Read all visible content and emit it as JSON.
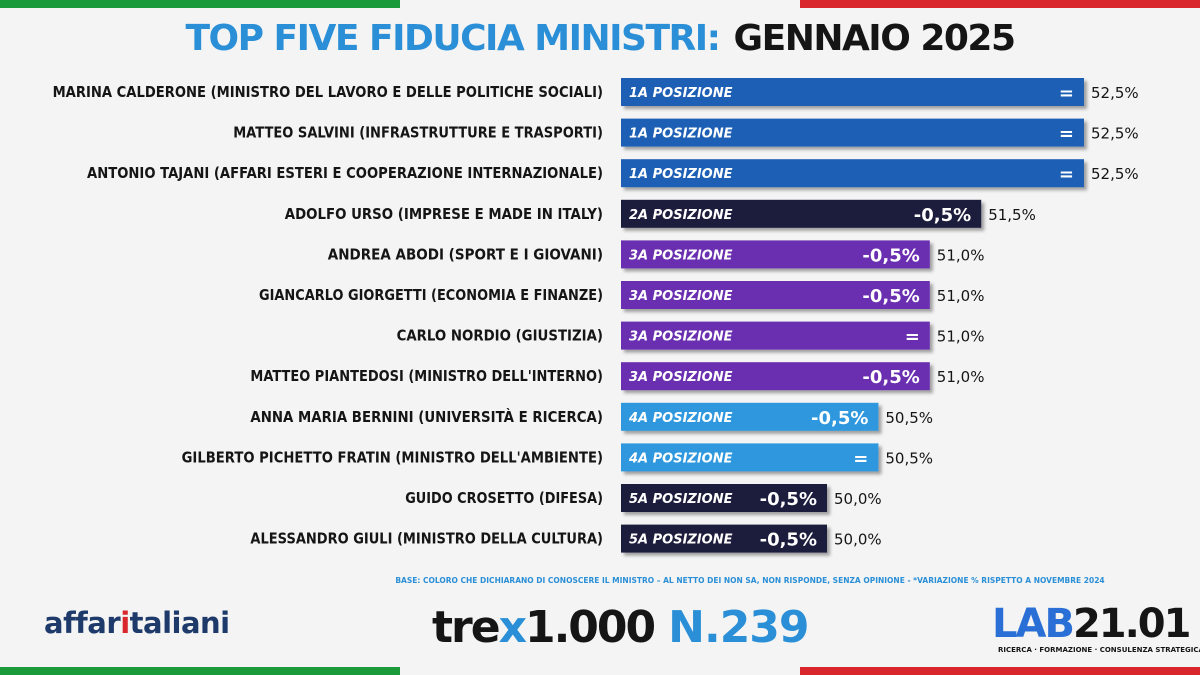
{
  "title": {
    "part1": "TOP FIVE FIDUCIA MINISTRI:",
    "part2": "GENNAIO 2025"
  },
  "chart_data": {
    "type": "bar",
    "orientation": "horizontal",
    "unit": "%",
    "xlim": [
      0,
      52.5
    ],
    "rows": [
      {
        "label": "MARINA CALDERONE (MINISTRO DEL LAVORO E DELLE POLITICHE SOCIALI)",
        "value": 52.5,
        "value_text": "52,5%",
        "position": "1A POSIZIONE",
        "variation": "=",
        "color": "#1f5fb4"
      },
      {
        "label": "MATTEO SALVINI (INFRASTRUTTURE E TRASPORTI)",
        "value": 52.5,
        "value_text": "52,5%",
        "position": "1A POSIZIONE",
        "variation": "=",
        "color": "#1f5fb4"
      },
      {
        "label": "ANTONIO TAJANI (AFFARI ESTERI E COOPERAZIONE INTERNAZIONALE)",
        "value": 52.5,
        "value_text": "52,5%",
        "position": "1A POSIZIONE",
        "variation": "=",
        "color": "#1f5fb4"
      },
      {
        "label": "ADOLFO URSO (IMPRESE E MADE IN ITALY)",
        "value": 51.5,
        "value_text": "51,5%",
        "position": "2A POSIZIONE",
        "variation": "-0,5%",
        "color": "#1e1e3c"
      },
      {
        "label": "ANDREA ABODI (SPORT E I GIOVANI)",
        "value": 51.0,
        "value_text": "51,0%",
        "position": "3A  POSIZIONE",
        "variation": "-0,5%",
        "color": "#6b2fb0"
      },
      {
        "label": "GIANCARLO GIORGETTI (ECONOMIA E FINANZE)",
        "value": 51.0,
        "value_text": "51,0%",
        "position": "3A  POSIZIONE",
        "variation": "-0,5%",
        "color": "#6b2fb0"
      },
      {
        "label": "CARLO NORDIO (GIUSTIZIA)",
        "value": 51.0,
        "value_text": "51,0%",
        "position": "3A  POSIZIONE",
        "variation": "=",
        "color": "#6b2fb0"
      },
      {
        "label": "MATTEO PIANTEDOSI (MINISTRO DELL'INTERNO)",
        "value": 51.0,
        "value_text": "51,0%",
        "position": "3A POSIZIONE",
        "variation": "-0,5%",
        "color": "#6b2fb0"
      },
      {
        "label": "ANNA MARIA BERNINI (UNIVERSITÀ E RICERCA)",
        "value": 50.5,
        "value_text": "50,5%",
        "position": "4A POSIZIONE",
        "variation": "-0,5%",
        "color": "#2f97dd"
      },
      {
        "label": "GILBERTO PICHETTO FRATIN (MINISTRO DELL'AMBIENTE)",
        "value": 50.5,
        "value_text": "50,5%",
        "position": "4A POSIZIONE",
        "variation": "=",
        "color": "#2f97dd"
      },
      {
        "label": "GUIDO CROSETTO (DIFESA)",
        "value": 50.0,
        "value_text": "50,0%",
        "position": "5A POSIZIONE",
        "variation": "-0,5%",
        "color": "#1e1e3c"
      },
      {
        "label": "ALESSANDRO GIULI (MINISTRO DELLA CULTURA)",
        "value": 50.0,
        "value_text": "50,0%",
        "position": "5A POSIZIONE",
        "variation": "-0,5%",
        "color": "#1e1e3c"
      }
    ]
  },
  "footnote": "BASE: COLORO CHE DICHIARANO DI CONOSCERE IL MINISTRO – AL NETTO DEI NON SA, NON RISPONDE, SENZA OPINIONE - *VARIAZIONE % RISPETTO A NOVEMBRE 2024",
  "logos": {
    "affari_pre": "affar",
    "affari_i": "i",
    "affari_post": "taliani",
    "tre_pre": "tre",
    "tre_x": "x",
    "tre_post": "1.000",
    "issue": "N.239",
    "lab_a": "LAB",
    "lab_b": "21.01",
    "lab_sub": "RICERCA · FORMAZIONE · CONSULENZA STRATEGICA"
  },
  "colors": {
    "title_blue": "#2a8fd6",
    "flag_green": "#1a9a3a",
    "flag_red": "#d8262c"
  }
}
